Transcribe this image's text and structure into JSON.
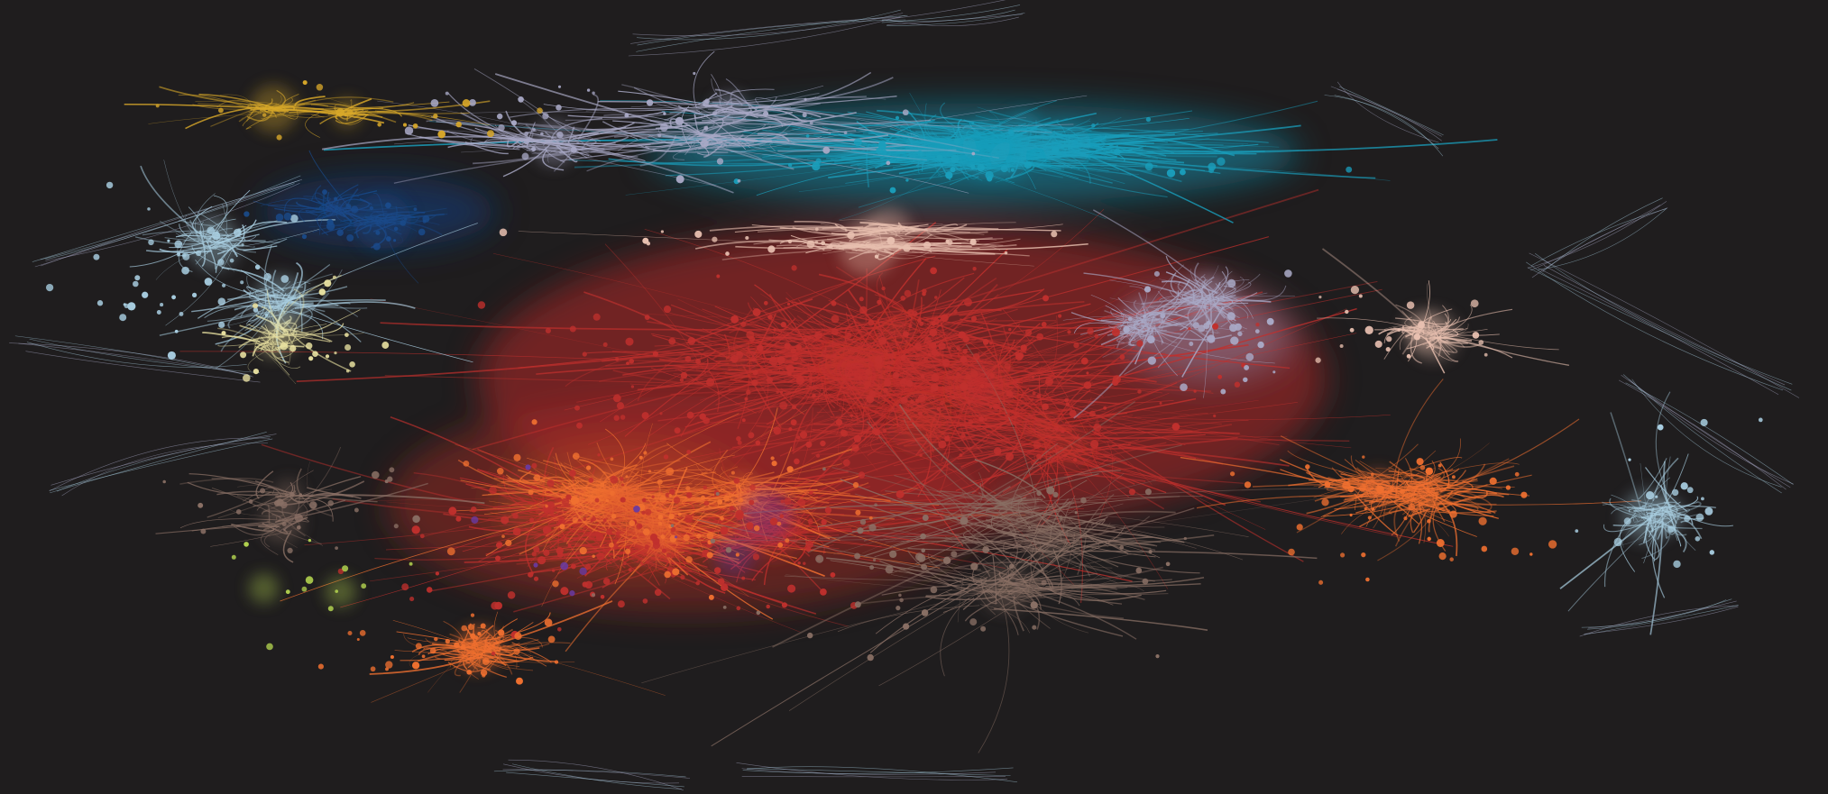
{
  "image": {
    "description_type": "network-graph-visualization",
    "background": "#1f1d1e",
    "clusters": [
      {
        "name": "red-core",
        "color": "#c0302d"
      },
      {
        "name": "orange",
        "color": "#f07030"
      },
      {
        "name": "teal",
        "color": "#1a9ebb"
      },
      {
        "name": "lavender",
        "color": "#a9a9c6"
      },
      {
        "name": "peach",
        "color": "#e8c0b0"
      },
      {
        "name": "pale-blue",
        "color": "#a8cde0"
      },
      {
        "name": "navy",
        "color": "#1a4a8a"
      },
      {
        "name": "gold",
        "color": "#d8a82a"
      },
      {
        "name": "brown",
        "color": "#8a7065"
      },
      {
        "name": "pale-yellow",
        "color": "#e8e0a0"
      },
      {
        "name": "lime",
        "color": "#b5d650"
      },
      {
        "name": "purple",
        "color": "#6a3aa0"
      }
    ]
  }
}
